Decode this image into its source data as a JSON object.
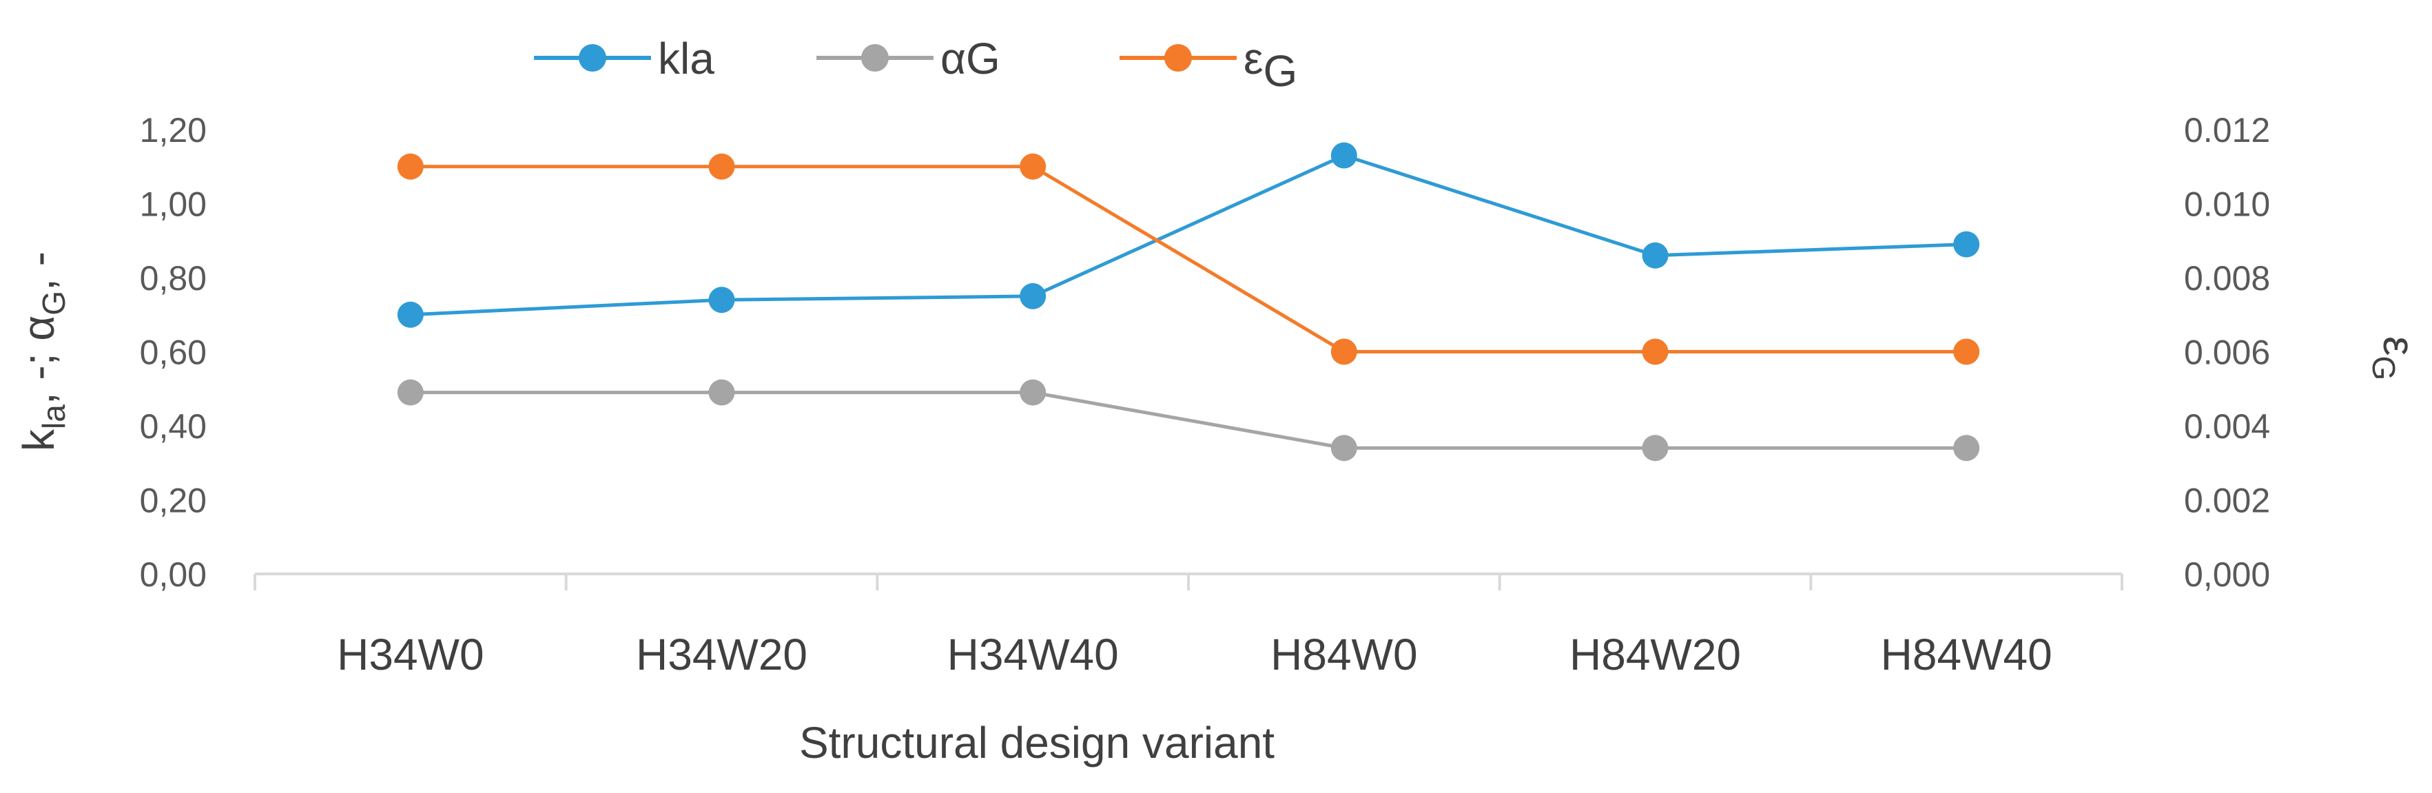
{
  "chart_data": {
    "type": "line",
    "title": "",
    "xlabel": "Structural design variant",
    "ylabel": "kla, -; αG, -",
    "ylabel_parts": {
      "k": "k",
      "k_sub": "la",
      "mid": ", -; α",
      "a_sub": "G",
      "end": ", -"
    },
    "y2label": "εG",
    "y2label_parts": {
      "base": "ε",
      "sub": "G"
    },
    "categories": [
      "H34W0",
      "H34W20",
      "H34W40",
      "H84W0",
      "H84W20",
      "H84W40"
    ],
    "ylim": [
      0,
      1.2
    ],
    "y_ticks": [
      "0,00",
      "0,20",
      "0,40",
      "0,60",
      "0,80",
      "1,00",
      "1,20"
    ],
    "y2lim": [
      0,
      0.012
    ],
    "y2_ticks": [
      "0,000",
      "0.002",
      "0.004",
      "0.006",
      "0.008",
      "0.010",
      "0.012"
    ],
    "grid": false,
    "legend_position": "top-center",
    "series": [
      {
        "name": "kla",
        "legend_base": "kla",
        "legend_sub": "",
        "axis": "left",
        "color": "#2E9BD6",
        "values": [
          0.7,
          0.74,
          0.75,
          1.13,
          0.86,
          0.89
        ]
      },
      {
        "name": "αG",
        "legend_base": "αG",
        "legend_sub": "",
        "axis": "left",
        "color": "#A5A5A5",
        "values": [
          0.49,
          0.49,
          0.49,
          0.34,
          0.34,
          0.34
        ]
      },
      {
        "name": "εG",
        "legend_base": "ε",
        "legend_sub": "G",
        "axis": "right",
        "color": "#F47B2A",
        "values": [
          0.011,
          0.011,
          0.011,
          0.006,
          0.006,
          0.006
        ]
      }
    ]
  }
}
